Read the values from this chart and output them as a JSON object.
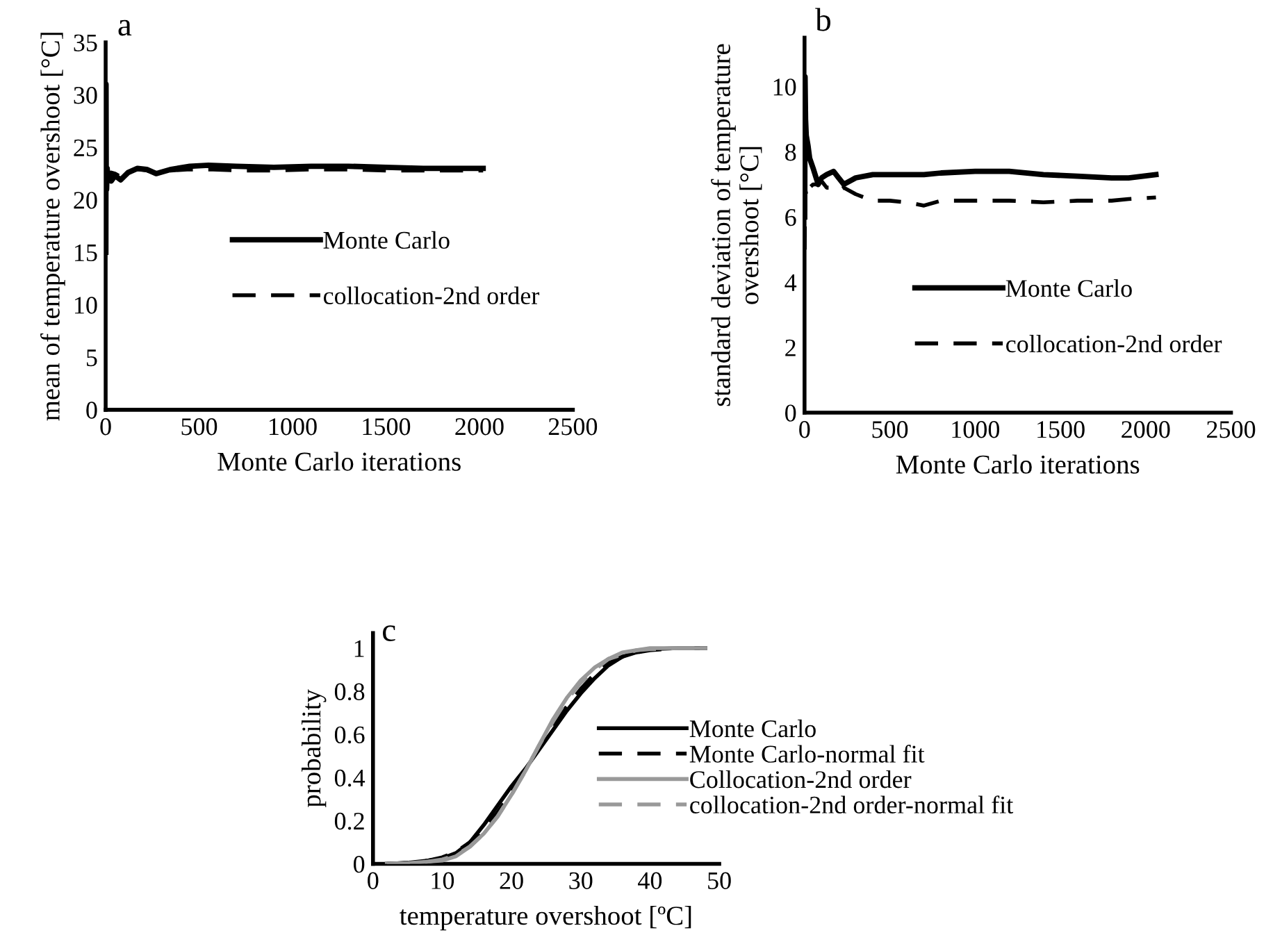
{
  "chart_data": [
    {
      "type": "line",
      "title": "a",
      "xlabel": "Monte Carlo iterations",
      "ylabel": "mean of temperature overshoot [°C]",
      "xlim": [
        0,
        2500
      ],
      "xticks": [
        0,
        500,
        1000,
        1500,
        2000,
        2500
      ],
      "ylim": [
        0,
        35
      ],
      "yticks": [
        0,
        5,
        10,
        15,
        20,
        25,
        30,
        35
      ],
      "legend": "center",
      "grid": false,
      "x": [
        1,
        2,
        3,
        5,
        8,
        12,
        20,
        30,
        50,
        80,
        120,
        170,
        220,
        270,
        350,
        450,
        550,
        700,
        900,
        1100,
        1300,
        1500,
        1700,
        1900,
        2020
      ],
      "series": [
        {
          "name": "Monte Carlo",
          "color": "#000000",
          "line_style": "solid",
          "values": [
            15,
            31,
            22,
            21,
            23,
            22,
            22.5,
            21.8,
            22.3,
            21.9,
            22.6,
            23.0,
            22.9,
            22.5,
            22.9,
            23.2,
            23.3,
            23.2,
            23.1,
            23.2,
            23.2,
            23.1,
            23.0,
            23.0,
            23.0
          ]
        },
        {
          "name": "collocation-2nd order",
          "color": "#000000",
          "line_style": "dashed",
          "values": [
            20,
            22,
            23,
            22.5,
            22.2,
            22.8,
            22.4,
            22.6,
            22.5,
            22.2,
            22.7,
            22.9,
            22.8,
            22.5,
            22.8,
            22.9,
            22.9,
            22.8,
            22.8,
            22.9,
            22.9,
            22.8,
            22.8,
            22.8,
            22.8
          ]
        }
      ]
    },
    {
      "type": "line",
      "title": "b",
      "xlabel": "Monte Carlo iterations",
      "ylabel": "standard deviation of temperature\novershoot [°C]",
      "xlim": [
        0,
        2500
      ],
      "xticks": [
        0,
        500,
        1000,
        1500,
        2000,
        2500
      ],
      "ylim": [
        0,
        11.5
      ],
      "yticks": [
        0,
        2,
        4,
        6,
        8,
        10
      ],
      "legend": "lower right",
      "grid": false,
      "x": [
        1,
        3,
        6,
        10,
        20,
        30,
        50,
        80,
        100,
        130,
        170,
        200,
        230,
        300,
        400,
        500,
        600,
        700,
        800,
        1000,
        1200,
        1400,
        1600,
        1800,
        1900,
        2060
      ],
      "series": [
        {
          "name": "Monte Carlo",
          "color": "#000000",
          "line_style": "solid",
          "values": [
            6,
            10.3,
            9,
            8.5,
            8.2,
            7.8,
            7.5,
            7.0,
            7.2,
            7.3,
            7.4,
            7.2,
            7.0,
            7.2,
            7.3,
            7.3,
            7.3,
            7.3,
            7.35,
            7.4,
            7.4,
            7.3,
            7.25,
            7.2,
            7.2,
            7.3
          ]
        },
        {
          "name": "collocation-2nd order",
          "color": "#000000",
          "line_style": "dashed",
          "values": [
            5,
            6.5,
            6.8,
            6.7,
            6.6,
            6.9,
            7.0,
            7.0,
            7.1,
            6.9,
            6.9,
            6.8,
            6.9,
            6.7,
            6.5,
            6.5,
            6.45,
            6.35,
            6.5,
            6.5,
            6.5,
            6.45,
            6.5,
            6.5,
            6.55,
            6.6
          ]
        }
      ]
    },
    {
      "type": "line",
      "title": "c",
      "xlabel": "temperature overshoot [ºC]",
      "ylabel": "probability",
      "xlim": [
        0,
        50
      ],
      "xticks": [
        0,
        10,
        20,
        30,
        40,
        50
      ],
      "ylim": [
        0,
        1.07
      ],
      "yticks": [
        0,
        0.2,
        0.4,
        0.6,
        0.8,
        1
      ],
      "legend": "lower right",
      "grid": false,
      "x": [
        2,
        5,
        8,
        10,
        12,
        14,
        16,
        18,
        20,
        22,
        24,
        26,
        28,
        30,
        32,
        34,
        36,
        38,
        40,
        44,
        48
      ],
      "series": [
        {
          "name": "Monte Carlo",
          "color": "#000000",
          "line_style": "solid",
          "values": [
            0,
            0.005,
            0.015,
            0.025,
            0.05,
            0.1,
            0.18,
            0.27,
            0.36,
            0.44,
            0.53,
            0.62,
            0.71,
            0.79,
            0.86,
            0.92,
            0.96,
            0.98,
            0.995,
            1,
            1
          ]
        },
        {
          "name": "Monte Carlo-normal fit",
          "color": "#000000",
          "line_style": "dashed",
          "values": [
            0,
            0.005,
            0.015,
            0.03,
            0.055,
            0.1,
            0.16,
            0.24,
            0.33,
            0.44,
            0.54,
            0.64,
            0.73,
            0.81,
            0.88,
            0.93,
            0.96,
            0.98,
            0.99,
            1,
            1
          ]
        },
        {
          "name": "Collocation-2nd order",
          "color": "#999999",
          "line_style": "solid",
          "values": [
            0,
            0.003,
            0.01,
            0.015,
            0.035,
            0.08,
            0.14,
            0.22,
            0.32,
            0.43,
            0.55,
            0.67,
            0.77,
            0.85,
            0.91,
            0.95,
            0.98,
            0.99,
            1,
            1,
            1
          ]
        },
        {
          "name": "collocation-2nd order-normal fit",
          "color": "#999999",
          "line_style": "dashed",
          "values": [
            0,
            0.003,
            0.01,
            0.02,
            0.04,
            0.08,
            0.14,
            0.22,
            0.32,
            0.43,
            0.55,
            0.66,
            0.76,
            0.84,
            0.9,
            0.95,
            0.97,
            0.99,
            0.995,
            1,
            1
          ]
        }
      ]
    }
  ]
}
